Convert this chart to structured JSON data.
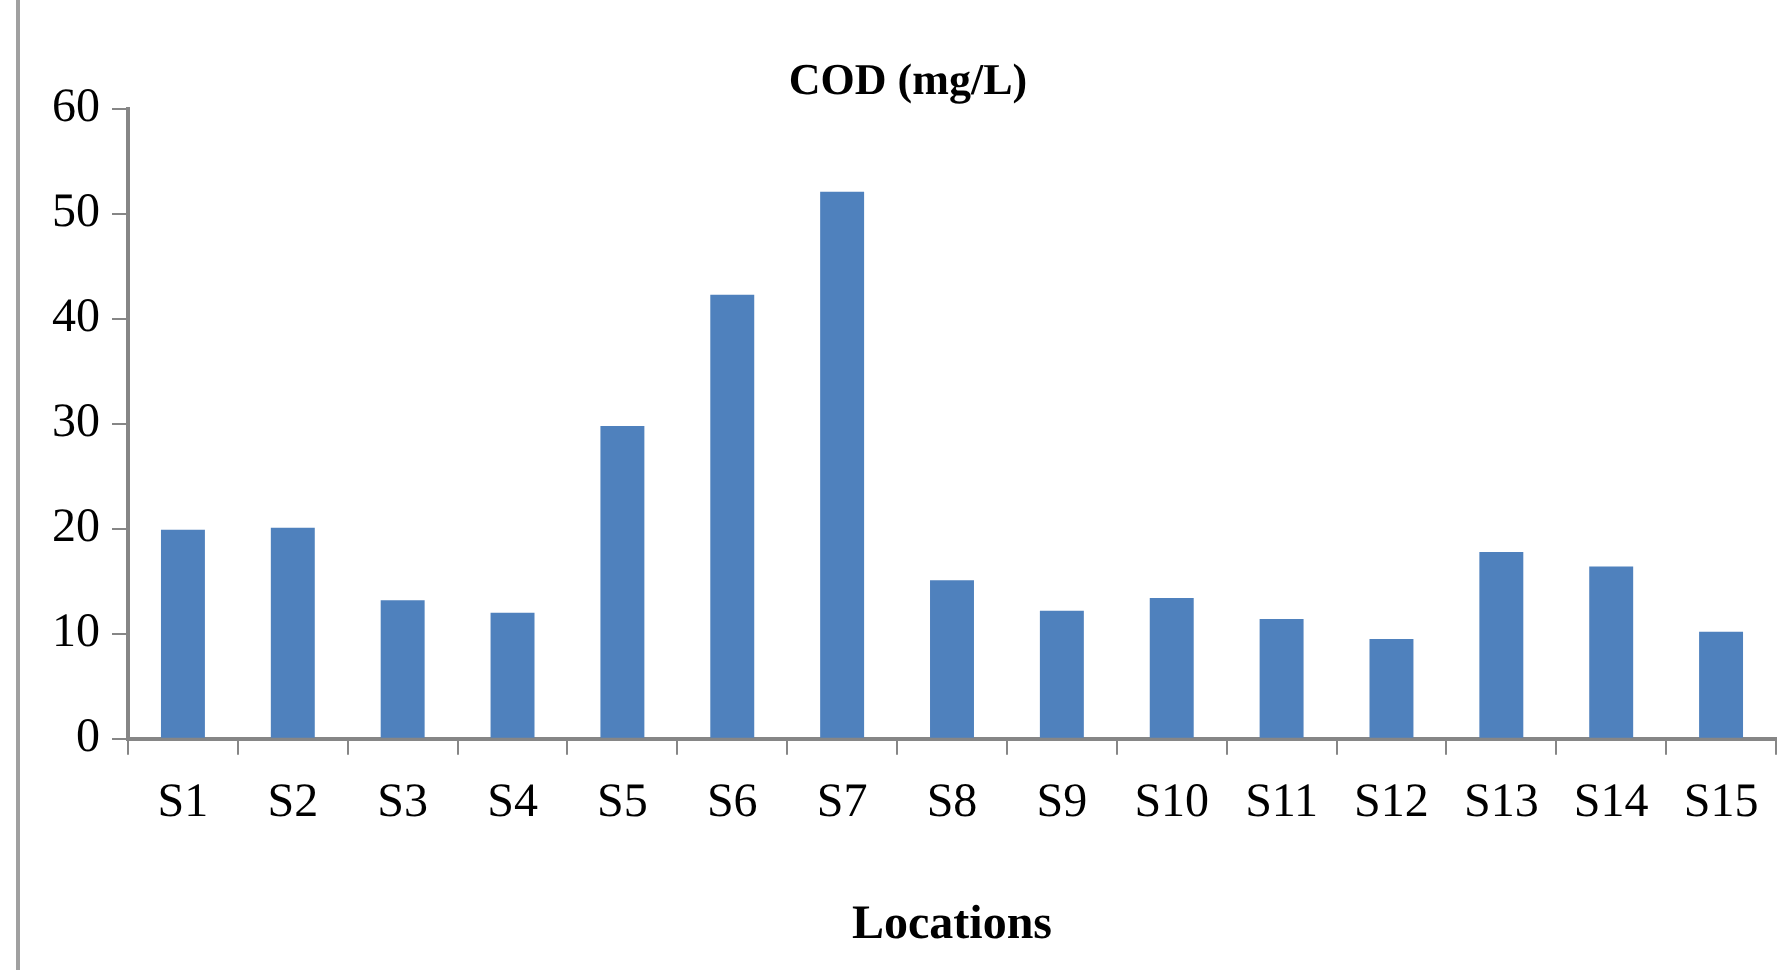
{
  "chart_data": {
    "type": "bar",
    "title": "COD (mg/L)",
    "xlabel": "Locations",
    "categories": [
      "S1",
      "S2",
      "S3",
      "S4",
      "S5",
      "S6",
      "S7",
      "S8",
      "S9",
      "S10",
      "S11",
      "S12",
      "S13",
      "S14",
      "S15"
    ],
    "values": [
      19.9,
      20.1,
      13.2,
      12.0,
      29.8,
      42.3,
      52.1,
      15.1,
      12.2,
      13.4,
      11.4,
      9.5,
      17.8,
      16.4,
      10.2
    ],
    "color": "#4f81bd",
    "ylim": [
      0,
      60
    ],
    "yticks": [
      0,
      10,
      20,
      30,
      40,
      50,
      60
    ]
  }
}
